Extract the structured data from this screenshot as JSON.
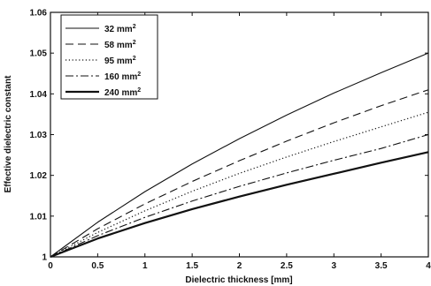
{
  "chart_data": {
    "type": "line",
    "title": "",
    "xlabel": "Dielectric thickness [mm]",
    "ylabel": "Effective dielectric constant",
    "xlim": [
      0,
      4
    ],
    "ylim": [
      1,
      1.06
    ],
    "x_ticks": [
      "0",
      "0.5",
      "1",
      "1.5",
      "2",
      "2.5",
      "3",
      "3.5",
      "4"
    ],
    "y_ticks": [
      "1",
      "1.01",
      "1.02",
      "1.03",
      "1.04",
      "1.05",
      "1.06"
    ],
    "grid": false,
    "legend_position": "top-left",
    "x": [
      0,
      0.5,
      1,
      1.5,
      2,
      2.5,
      3,
      3.5,
      4
    ],
    "series": [
      {
        "name": "32 mm",
        "unit_sup": "2",
        "dash": "solid",
        "values": [
          1.0,
          1.0085,
          1.016,
          1.0228,
          1.029,
          1.0348,
          1.0402,
          1.0452,
          1.05
        ]
      },
      {
        "name": "58 mm",
        "unit_sup": "2",
        "dash": "dashed",
        "values": [
          1.0,
          1.0069,
          1.013,
          1.0185,
          1.0236,
          1.0284,
          1.0329,
          1.0371,
          1.041
        ]
      },
      {
        "name": "95 mm",
        "unit_sup": "2",
        "dash": "dotted",
        "values": [
          1.0,
          1.006,
          1.0113,
          1.0161,
          1.0205,
          1.0245,
          1.0283,
          1.0319,
          1.0355
        ]
      },
      {
        "name": "160 mm",
        "unit_sup": "2",
        "dash": "dashdot",
        "values": [
          1.0,
          1.0052,
          1.0097,
          1.0137,
          1.0173,
          1.0206,
          1.0237,
          1.0266,
          1.03
        ]
      },
      {
        "name": "240 mm",
        "unit_sup": "2",
        "dash": "solid-thick",
        "values": [
          1.0,
          1.0045,
          1.0083,
          1.0117,
          1.0148,
          1.0177,
          1.0204,
          1.0231,
          1.0257
        ]
      }
    ]
  }
}
